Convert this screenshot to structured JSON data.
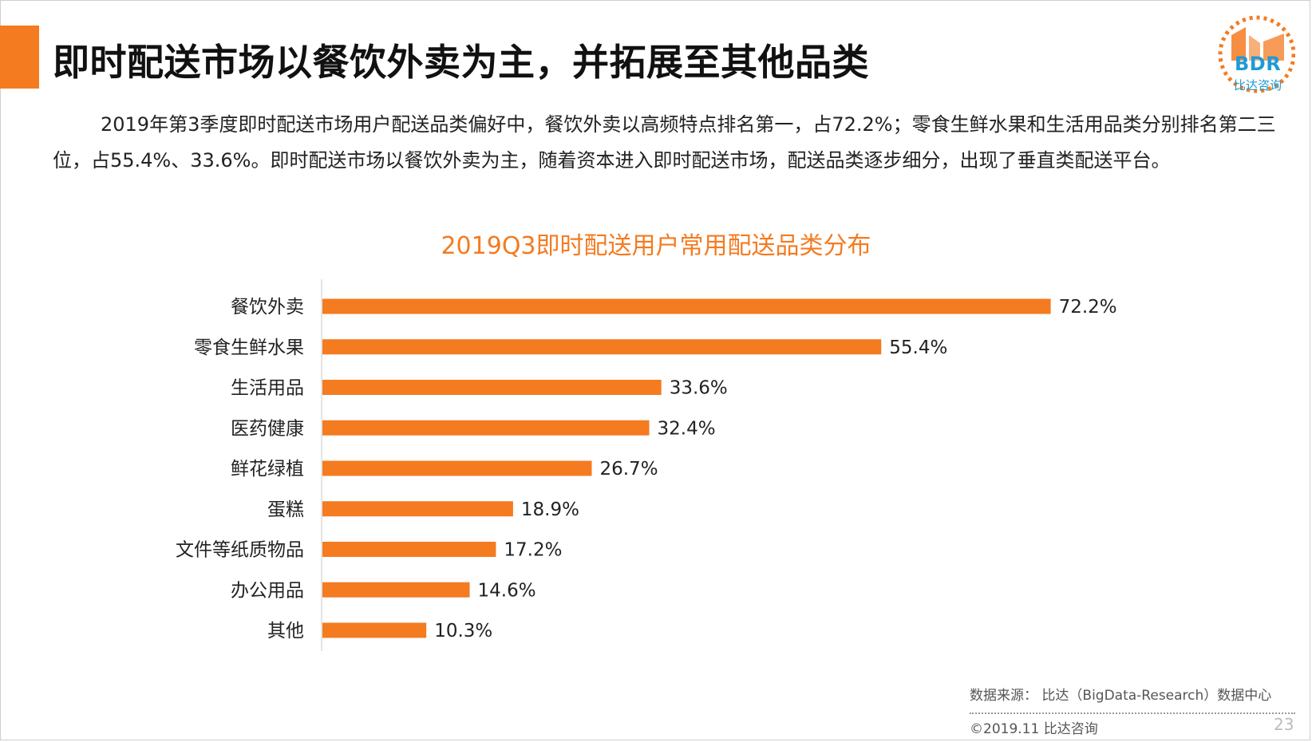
{
  "header": {
    "title": "即时配送市场以餐饮外卖为主，并拓展至其他品类"
  },
  "logo": {
    "text": "BDR",
    "subtitle": "比达咨询",
    "colors": {
      "orange": "#f47b20",
      "blue": "#1d9bd6"
    }
  },
  "intro": {
    "text": "2019年第3季度即时配送市场用户配送品类偏好中，餐饮外卖以高频特点排名第一，占72.2%；零食生鲜水果和生活用品类分别排名第二三位，占55.4%、33.6%。即时配送市场以餐饮外卖为主，随着资本进入即时配送市场，配送品类逐步细分，出现了垂直类配送平台。"
  },
  "chart_data": {
    "type": "bar",
    "orientation": "horizontal",
    "title": "2019Q3即时配送用户常用配送品类分布",
    "categories": [
      "餐饮外卖",
      "零食生鲜水果",
      "生活用品",
      "医药健康",
      "鲜花绿植",
      "蛋糕",
      "文件等纸质物品",
      "办公用品",
      "其他"
    ],
    "values": [
      72.2,
      55.4,
      33.6,
      32.4,
      26.7,
      18.9,
      17.2,
      14.6,
      10.3
    ],
    "value_labels": [
      "72.2%",
      "55.4%",
      "33.6%",
      "32.4%",
      "26.7%",
      "18.9%",
      "17.2%",
      "14.6%",
      "10.3%"
    ],
    "unit": "%",
    "xlim": [
      0,
      100
    ],
    "xlabel": "",
    "ylabel": "",
    "grid": false,
    "legend": "none",
    "bar_color": "#f47b20"
  },
  "footer": {
    "source": "数据来源： 比达（BigData-Research）数据中心",
    "copyright": "©2019.11  比达咨询",
    "page_number": "23"
  }
}
